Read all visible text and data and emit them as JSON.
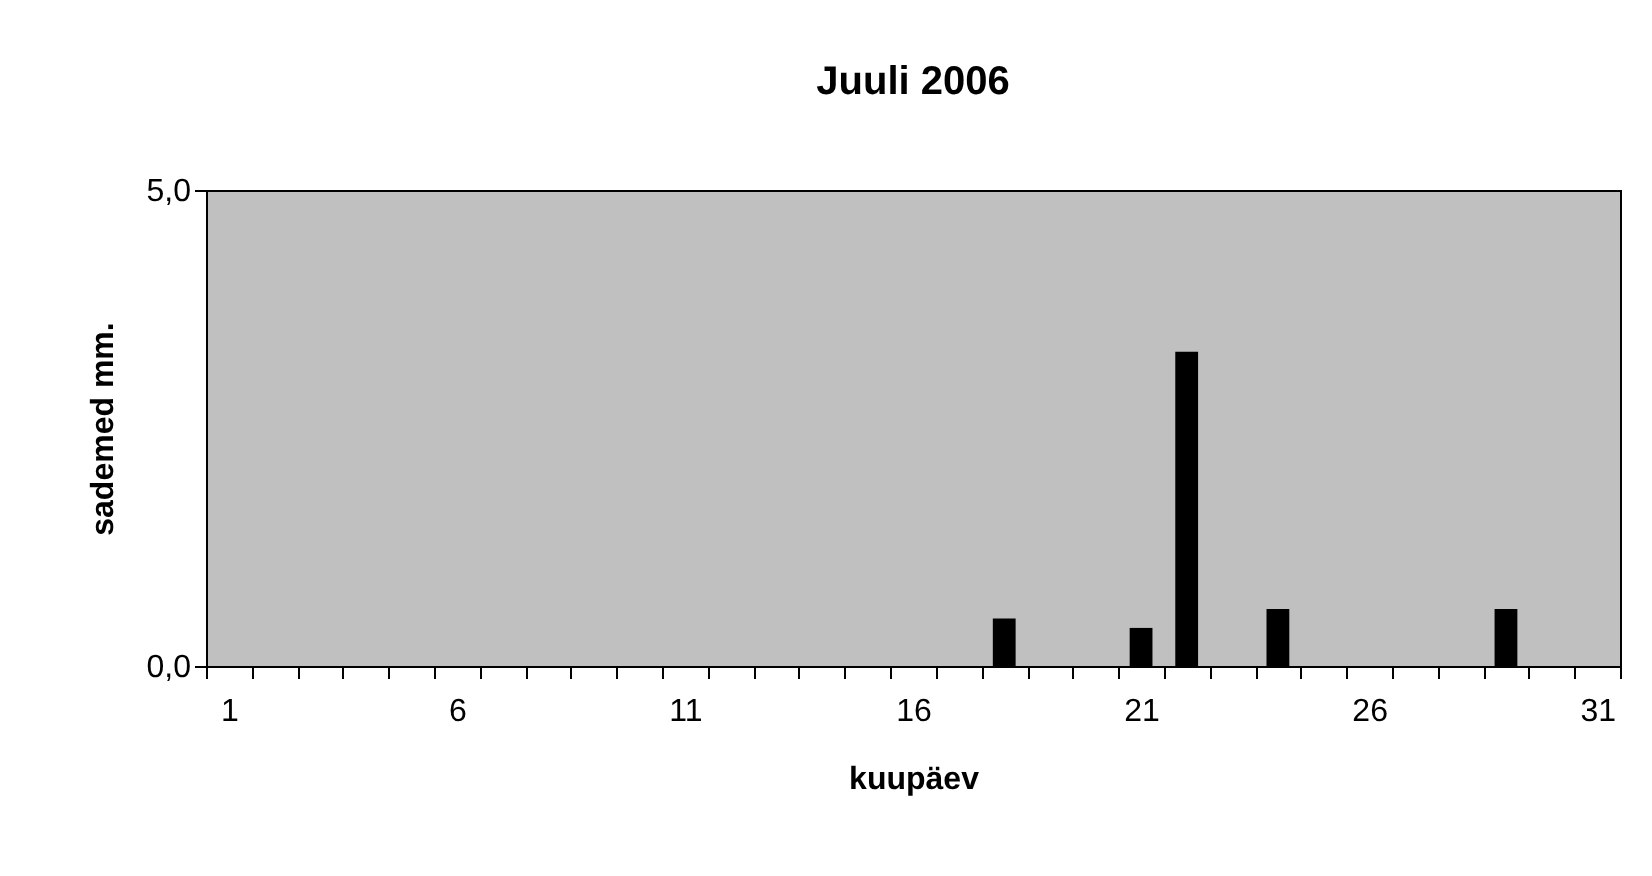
{
  "chart_data": {
    "type": "bar",
    "title": "Juuli 2006",
    "xlabel": "kuupäev",
    "ylabel": "sademed mm.",
    "categories": [
      "1",
      null,
      null,
      null,
      null,
      "6",
      null,
      null,
      null,
      null,
      "11",
      null,
      null,
      null,
      null,
      "16",
      null,
      null,
      null,
      null,
      "21",
      null,
      null,
      null,
      null,
      "26",
      null,
      null,
      null,
      null,
      "31"
    ],
    "values": [
      0,
      0,
      0,
      0,
      0,
      0,
      0,
      0,
      0,
      0,
      0,
      0,
      0,
      0,
      0,
      0,
      0,
      0.5,
      0,
      0,
      0.4,
      3.3,
      0,
      0.6,
      0,
      0,
      0,
      0,
      0.6,
      0,
      0
    ],
    "color": "#000000",
    "ylim": [
      0,
      5
    ],
    "yticks": [
      {
        "value": 0,
        "label": "0,0"
      },
      {
        "value": 5,
        "label": "5,0"
      }
    ],
    "grid": false
  }
}
